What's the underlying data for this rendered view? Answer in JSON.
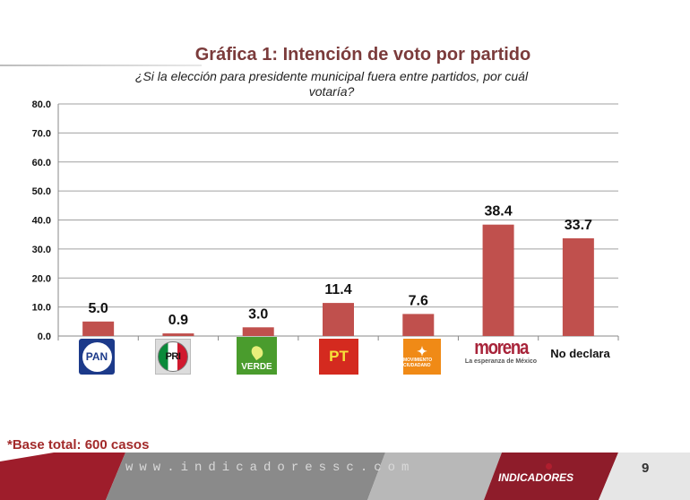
{
  "header": {
    "title": "Gráfica 1: Intención de voto por partido",
    "subtitle_line1": "¿Si la elección para presidente municipal fuera entre partidos, por cuál",
    "subtitle_line2": "votaría?"
  },
  "chart_data": {
    "type": "bar",
    "categories": [
      "PAN",
      "PRI",
      "VERDE",
      "PT",
      "Movimiento Ciudadano",
      "morena",
      "No declara"
    ],
    "values": [
      5.0,
      0.9,
      3.0,
      11.4,
      7.6,
      38.4,
      33.7
    ],
    "value_labels": [
      "5.0",
      "0.9",
      "3.0",
      "11.4",
      "7.6",
      "38.4",
      "33.7"
    ],
    "ylim": [
      0,
      80
    ],
    "yticks": [
      "0.0",
      "10.0",
      "20.0",
      "30.0",
      "40.0",
      "50.0",
      "60.0",
      "70.0",
      "80.0"
    ],
    "grid": true,
    "bar_color": "#c0504d"
  },
  "logos": {
    "pan": "PAN",
    "pri": "PRI",
    "verde": "VERDE",
    "pt": "PT",
    "mc": "MOVIMIENTO CIUDADANO",
    "morena": "morena",
    "morena_tagline": "La esperanza de México"
  },
  "no_declara_label": "No declara",
  "footer": {
    "base_note": "*Base total: 600 casos",
    "url": "www.indicadoressc.com",
    "brand": "INDICADORES",
    "page_number": "9"
  },
  "colors": {
    "title": "#7b3b3b",
    "accent": "#a22a2a",
    "bar": "#c0504d"
  }
}
